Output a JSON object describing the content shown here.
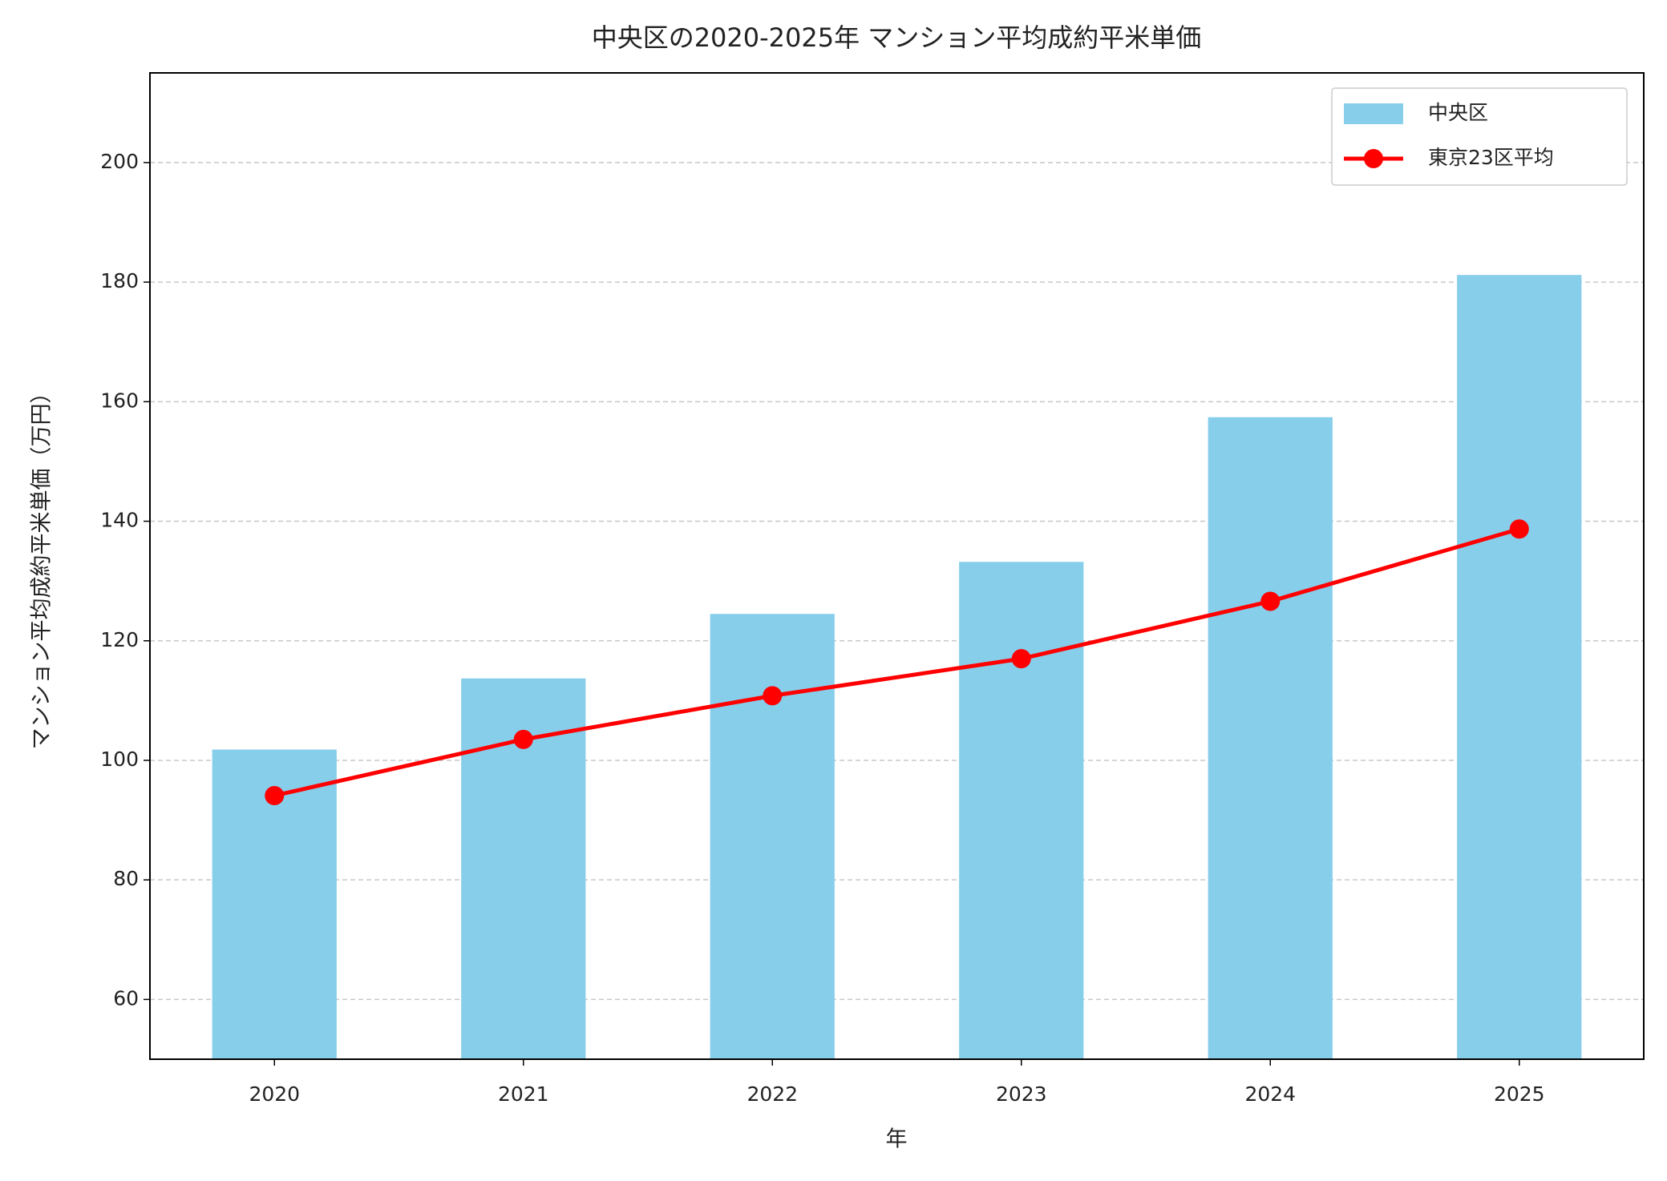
{
  "chart_data": {
    "type": "bar",
    "title": "中央区の2020-2025年 マンション平均成約平米単価",
    "x_label": "年",
    "y_label": "マンション平均成約平米単価（万円）",
    "categories": [
      "2020",
      "2021",
      "2022",
      "2023",
      "2024",
      "2025"
    ],
    "series": [
      {
        "name": "中央区",
        "type": "bar",
        "color": "#87ceeb",
        "values": [
          101.8,
          113.7,
          124.5,
          133.2,
          157.4,
          181.2
        ]
      },
      {
        "name": "東京23区平均",
        "type": "line",
        "color": "#ff0000",
        "values": [
          94.1,
          103.5,
          110.8,
          117.0,
          126.6,
          138.7
        ]
      }
    ],
    "ylim": [
      50,
      215
    ],
    "yticks": [
      60,
      80,
      100,
      120,
      140,
      160,
      180,
      200
    ],
    "grid": true,
    "legend": "upper right"
  }
}
